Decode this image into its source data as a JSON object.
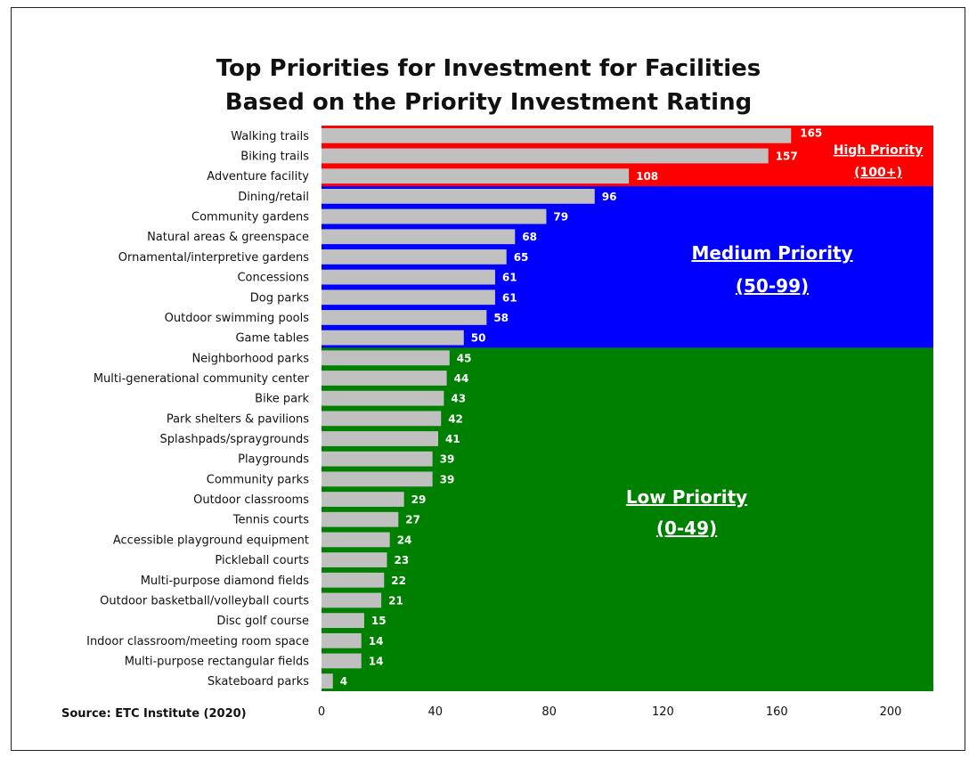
{
  "chart_data": {
    "type": "bar",
    "orientation": "horizontal",
    "title": "Top Priorities for Investment for Facilities",
    "subtitle": "Based on the Priority Investment Rating",
    "categories": [
      "Walking trails",
      "Biking trails",
      "Adventure facility",
      "Dining/retail",
      "Community gardens",
      "Natural areas & greenspace",
      "Ornamental/interpretive gardens",
      "Concessions",
      "Dog parks",
      "Outdoor swimming pools",
      "Game tables",
      "Neighborhood parks",
      "Multi-generational community center",
      "Bike park",
      "Park shelters & pavilions",
      "Splashpads/spraygrounds",
      "Playgrounds",
      "Community parks",
      "Outdoor classrooms",
      "Tennis courts",
      "Accessible playground equipment",
      "Pickleball courts",
      "Multi-purpose diamond fields",
      "Outdoor basketball/volleyball courts",
      "Disc golf course",
      "Indoor classroom/meeting room space",
      "Multi-purpose rectangular fields",
      "Skateboard parks"
    ],
    "values": [
      165,
      157,
      108,
      96,
      79,
      68,
      65,
      61,
      61,
      58,
      50,
      45,
      44,
      43,
      42,
      41,
      39,
      39,
      29,
      27,
      24,
      23,
      22,
      21,
      15,
      14,
      14,
      4
    ],
    "value_labels": [
      "165",
      "157",
      "108",
      "96",
      "79",
      "68",
      "65",
      "61",
      "61",
      "58",
      "50",
      "45",
      "44",
      "43",
      "42",
      "41",
      "39",
      "39",
      "29",
      "27",
      "24",
      "23",
      "22",
      "21",
      "15",
      "14",
      "14",
      "4"
    ],
    "xlim": [
      0,
      215
    ],
    "xticks": [
      0,
      40,
      80,
      120,
      160,
      200
    ],
    "xtick_labels": [
      "0",
      "40",
      "80",
      "120",
      "160",
      "200"
    ],
    "bar_color": "#c0c0c0",
    "zones": [
      {
        "label_line1": "High Priority",
        "label_line2": "(100+)",
        "color": "#ff0000",
        "rows": [
          0,
          2
        ]
      },
      {
        "label_line1": "Medium Priority",
        "label_line2": "(50-99)",
        "color": "#0000ff",
        "rows": [
          3,
          10
        ]
      },
      {
        "label_line1": "Low Priority",
        "label_line2": "(0-49)",
        "color": "#008000",
        "rows": [
          11,
          27
        ]
      }
    ],
    "grid": false,
    "legend": "none"
  },
  "source": "Source:  ETC Institute (2020)"
}
